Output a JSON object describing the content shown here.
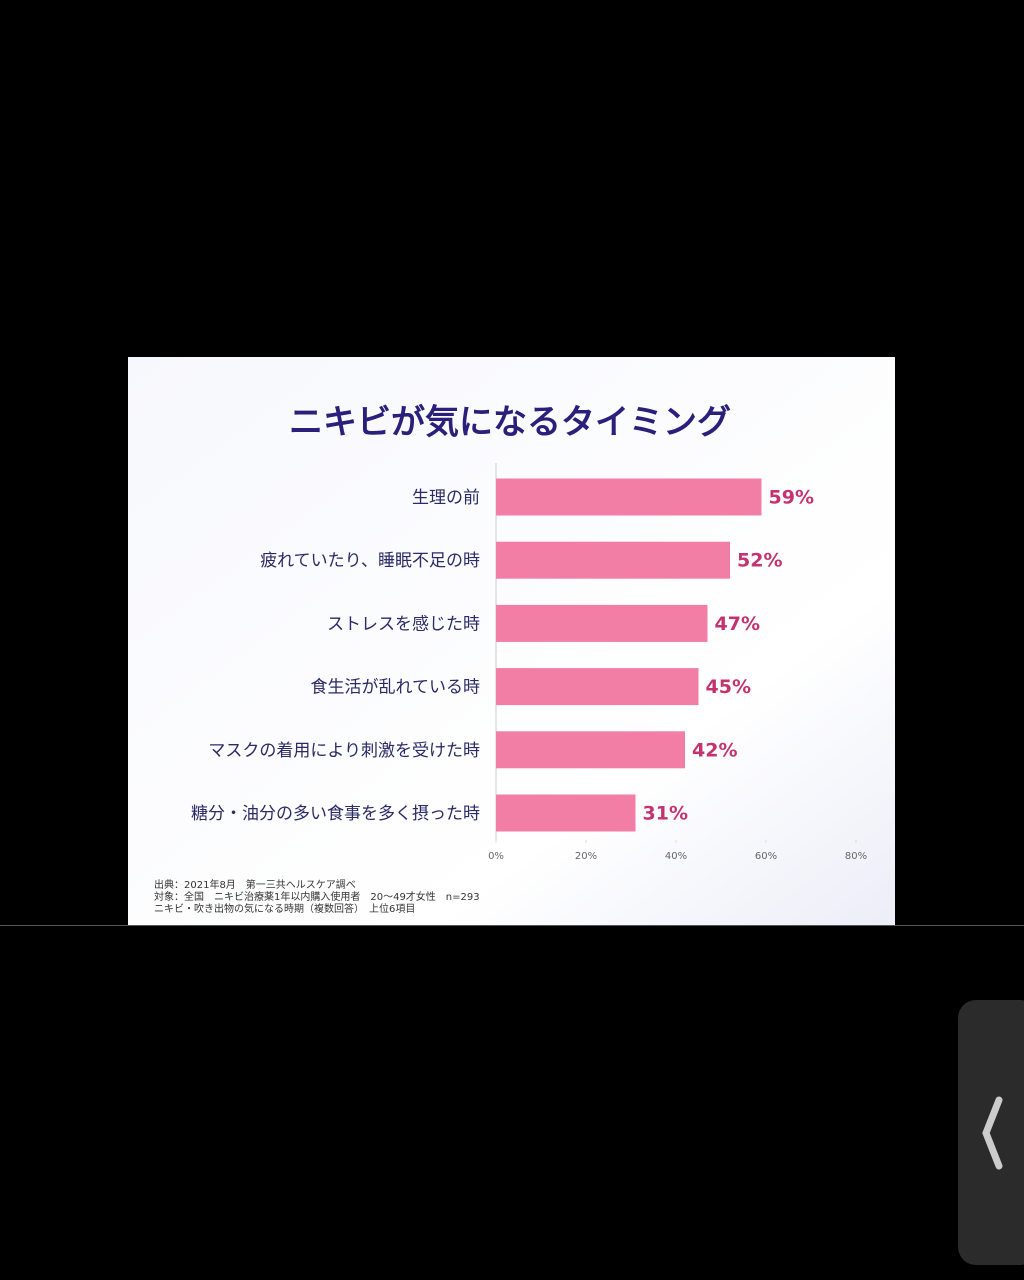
{
  "chart_data": {
    "type": "hbar",
    "title": "ニキビが気になるタイミング",
    "categories": [
      "生理の前",
      "疲れていたり、睡眠不足の時",
      "ストレスを感じた時",
      "食生活が乱れている時",
      "マスクの着用により刺激を受けた時",
      "糖分・油分の多い食事を多く摂った時"
    ],
    "values": [
      59,
      52,
      47,
      45,
      42,
      31
    ],
    "value_labels": [
      "59%",
      "52%",
      "47%",
      "45%",
      "42%",
      "31%"
    ],
    "color": "#f27ea6",
    "xlim": [
      0,
      80
    ],
    "xticks": [
      {
        "value": 0,
        "label": "0%"
      },
      {
        "value": 20,
        "label": "20%"
      },
      {
        "value": 40,
        "label": "40%"
      },
      {
        "value": 60,
        "label": "60%"
      },
      {
        "value": 80,
        "label": "80%"
      }
    ],
    "annotations": [
      "出典：2021年8月　第一三共ヘルスケア調べ",
      "対象：全国　ニキビ治療薬1年以内購入使用者　20～49才女性　n=293",
      "ニキビ・吹き出物の気になる時期（複数回答）　上位6項目"
    ]
  }
}
